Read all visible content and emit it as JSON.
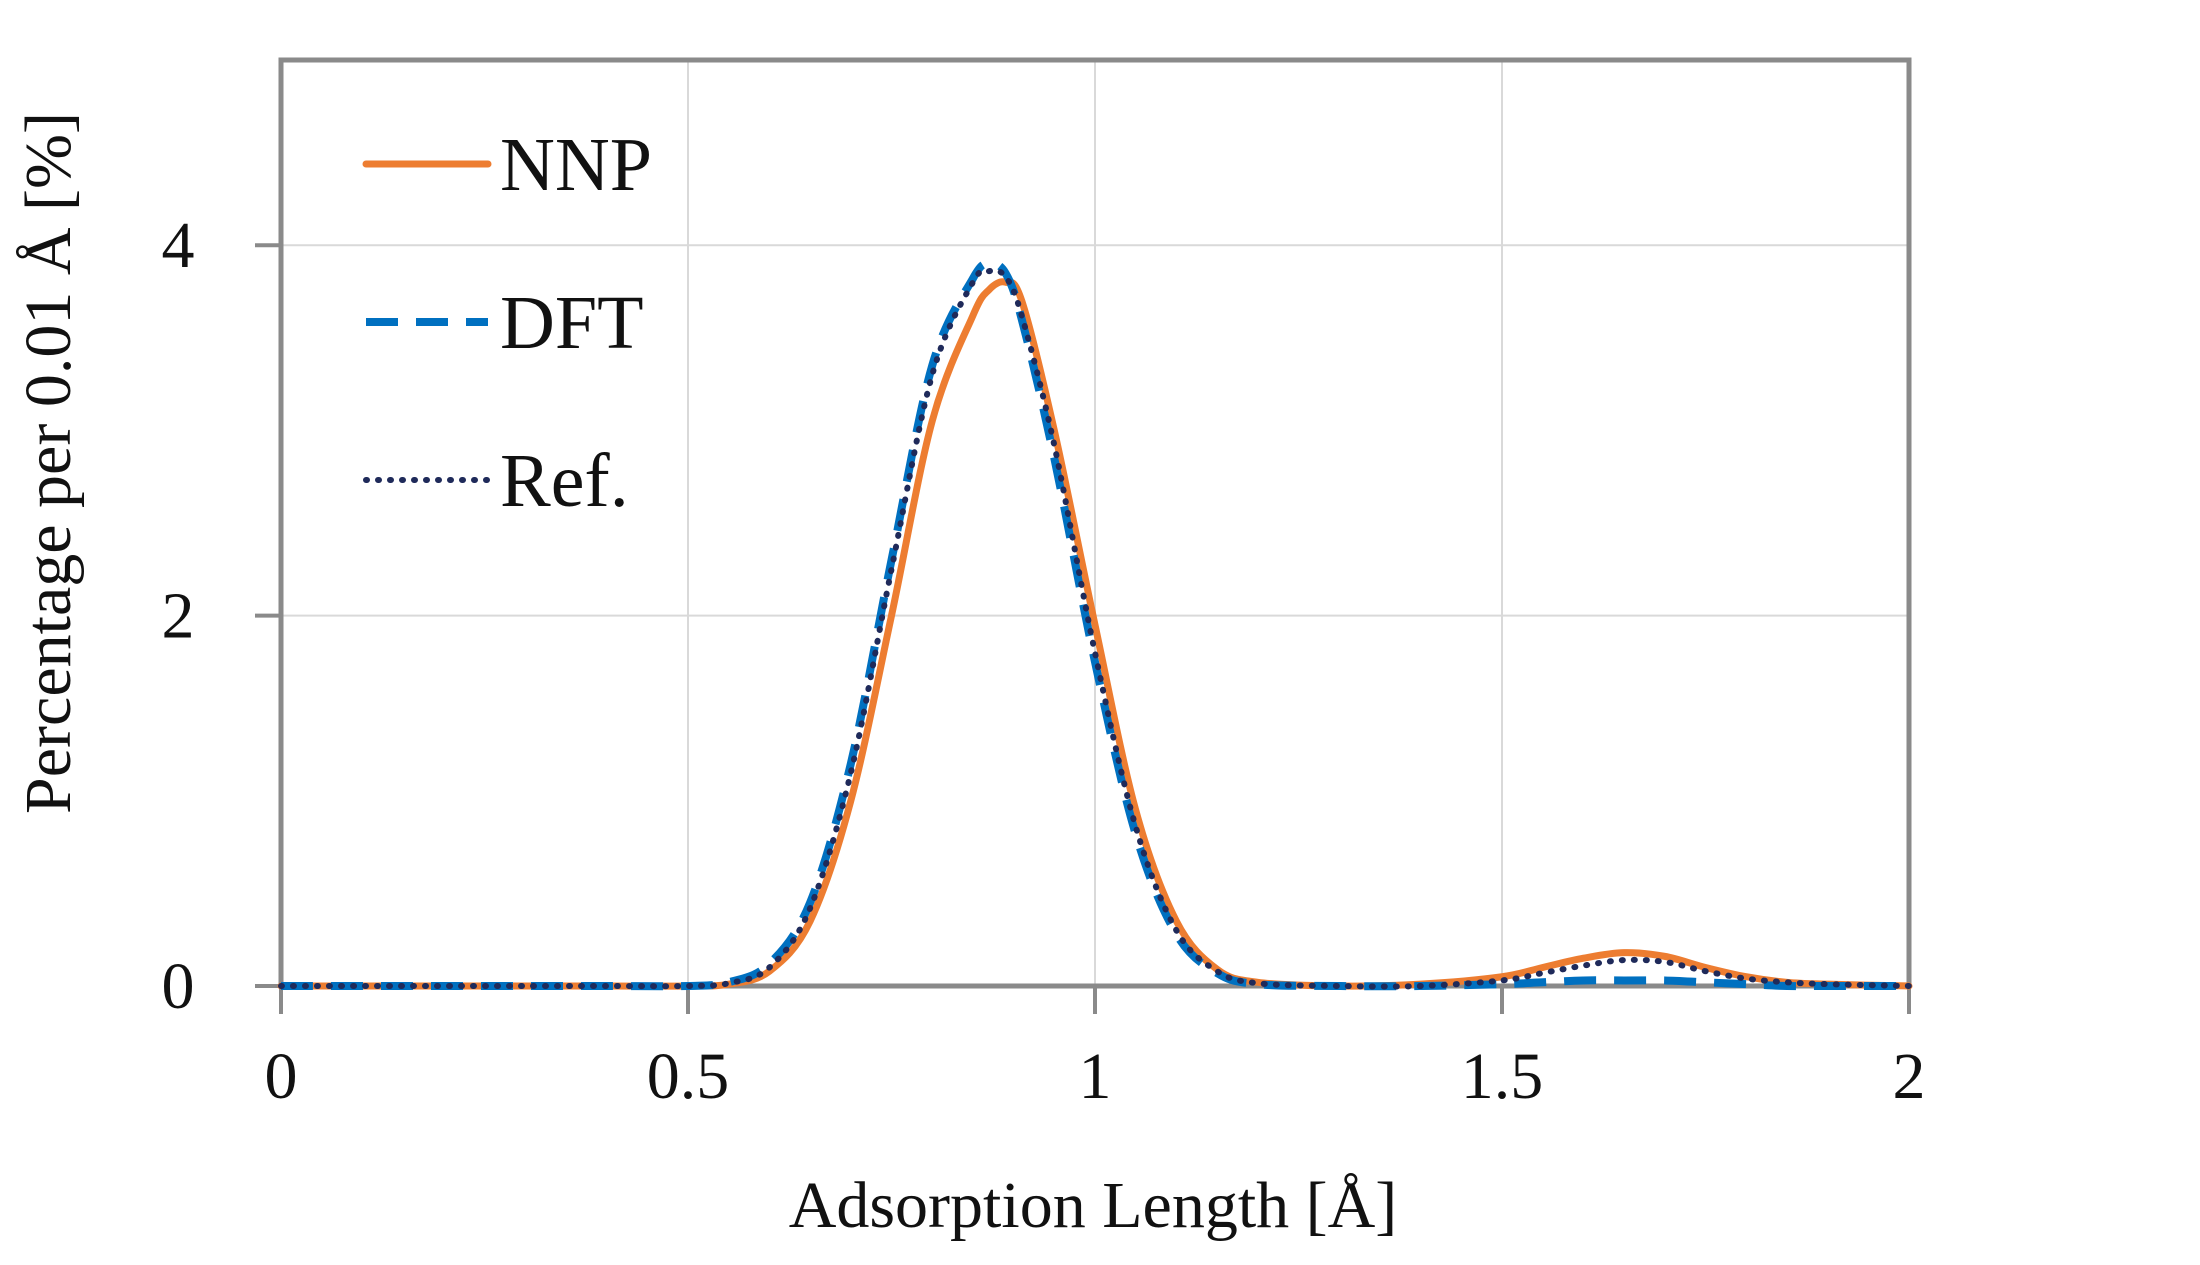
{
  "chart_data": {
    "type": "line",
    "title": "",
    "xlabel": "Adsorption Length [Å]",
    "ylabel": "Percentage per 0.01 Å [%]",
    "xlim": [
      0,
      2
    ],
    "ylim": [
      0,
      5
    ],
    "x_ticks": [
      0,
      0.5,
      1,
      1.5,
      2
    ],
    "x_tick_labels": [
      "0",
      "0.5",
      "1",
      "1.5",
      "2"
    ],
    "y_ticks": [
      0,
      2,
      4
    ],
    "y_tick_labels": [
      "0",
      "2",
      "4"
    ],
    "grid": true,
    "legend_position": "top-left",
    "x": [
      0,
      0.1,
      0.2,
      0.3,
      0.4,
      0.5,
      0.55,
      0.6,
      0.65,
      0.7,
      0.75,
      0.8,
      0.85,
      0.87,
      0.89,
      0.91,
      0.95,
      1.0,
      1.05,
      1.1,
      1.15,
      1.2,
      1.3,
      1.4,
      1.5,
      1.55,
      1.6,
      1.65,
      1.7,
      1.75,
      1.8,
      1.85,
      1.9,
      2.0
    ],
    "series": [
      {
        "name": "NNP",
        "color": "#ED7D31",
        "style": "solid",
        "values": [
          0,
          0,
          0,
          0,
          0,
          0,
          0.01,
          0.08,
          0.35,
          1.0,
          2.0,
          3.05,
          3.62,
          3.76,
          3.8,
          3.7,
          3.0,
          1.95,
          0.95,
          0.35,
          0.09,
          0.02,
          0,
          0.01,
          0.05,
          0.1,
          0.15,
          0.18,
          0.16,
          0.1,
          0.05,
          0.02,
          0.01,
          0
        ]
      },
      {
        "name": "DFT",
        "color": "#0070C0",
        "style": "dashed",
        "values": [
          0,
          0,
          0,
          0,
          0,
          0,
          0.02,
          0.12,
          0.45,
          1.2,
          2.3,
          3.35,
          3.82,
          3.9,
          3.85,
          3.6,
          2.85,
          1.75,
          0.82,
          0.28,
          0.07,
          0.01,
          0,
          0,
          0.01,
          0.02,
          0.03,
          0.03,
          0.03,
          0.02,
          0.01,
          0,
          0,
          0
        ]
      },
      {
        "name": "Ref.",
        "color": "#1F2A5A",
        "style": "dotted",
        "values": [
          0,
          0,
          0,
          0,
          0,
          0,
          0.015,
          0.1,
          0.42,
          1.15,
          2.25,
          3.3,
          3.8,
          3.86,
          3.83,
          3.62,
          2.92,
          1.8,
          0.86,
          0.3,
          0.08,
          0.015,
          0,
          0,
          0.03,
          0.07,
          0.11,
          0.14,
          0.13,
          0.08,
          0.04,
          0.02,
          0.01,
          0
        ]
      }
    ]
  }
}
